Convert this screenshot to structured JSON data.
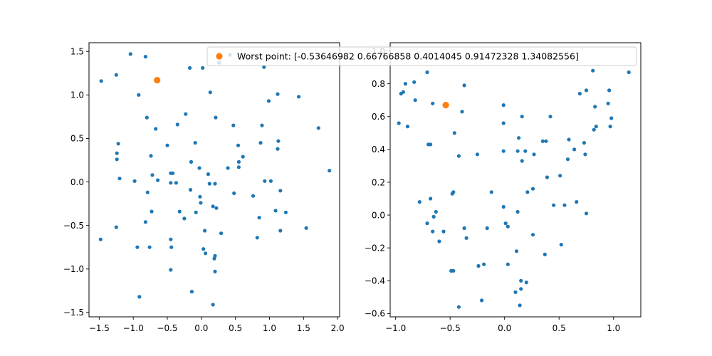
{
  "colors": {
    "points": "#1f77b4",
    "worst": "#ff7f0e",
    "axes": "#000000",
    "legend_border": "#cccccc"
  },
  "legend": {
    "label": "Worst point: [-0.53646982  0.66766858  0.4014045   0.91472328  1.34082556]",
    "placement": "top-center, over second plot"
  },
  "chart_data": [
    {
      "type": "scatter",
      "title": "",
      "xlabel": "",
      "ylabel": "",
      "xlim": [
        -1.65,
        2.03
      ],
      "ylim": [
        -1.55,
        1.6
      ],
      "xticks": [
        -1.5,
        -1.0,
        -0.5,
        0.0,
        0.5,
        1.0,
        1.5,
        2.0
      ],
      "xtick_labels": [
        "−1.5",
        "−1.0",
        "−0.5",
        "0.0",
        "0.5",
        "1.0",
        "1.5",
        "2.0"
      ],
      "yticks": [
        -1.5,
        -1.0,
        -0.5,
        0.0,
        0.5,
        1.0,
        1.5
      ],
      "ytick_labels": [
        "−1.5",
        "−1.0",
        "−0.5",
        "0.0",
        "0.5",
        "1.0",
        "1.5"
      ],
      "grid": false,
      "series": [
        {
          "role": "points",
          "points": [
            [
              -1.04,
              1.47
            ],
            [
              -0.82,
              1.44
            ],
            [
              -0.17,
              1.31
            ],
            [
              0.02,
              1.31
            ],
            [
              0.26,
              1.37
            ],
            [
              0.42,
              1.46
            ],
            [
              -1.47,
              1.16
            ],
            [
              -1.25,
              1.23
            ],
            [
              0.92,
              1.32
            ],
            [
              -0.92,
              1.0
            ],
            [
              0.13,
              1.03
            ],
            [
              1.12,
              1.01
            ],
            [
              1.43,
              0.98
            ],
            [
              0.99,
              0.93
            ],
            [
              -0.8,
              0.74
            ],
            [
              -0.67,
              0.61
            ],
            [
              -0.35,
              0.66
            ],
            [
              -0.23,
              0.78
            ],
            [
              0.21,
              0.74
            ],
            [
              0.47,
              0.65
            ],
            [
              0.89,
              0.65
            ],
            [
              1.72,
              0.62
            ],
            [
              -0.5,
              0.42
            ],
            [
              -0.09,
              0.45
            ],
            [
              -1.22,
              0.44
            ],
            [
              0.54,
              0.42
            ],
            [
              0.87,
              0.45
            ],
            [
              1.13,
              0.47
            ],
            [
              1.12,
              0.38
            ],
            [
              -1.24,
              0.33
            ],
            [
              -1.24,
              0.26
            ],
            [
              -0.74,
              0.3
            ],
            [
              0.61,
              0.29
            ],
            [
              0.55,
              0.23
            ],
            [
              -0.15,
              0.23
            ],
            [
              0.39,
              0.16
            ],
            [
              0.55,
              0.17
            ],
            [
              -0.03,
              0.16
            ],
            [
              0.1,
              0.09
            ],
            [
              -0.72,
              0.08
            ],
            [
              -0.45,
              0.1
            ],
            [
              -0.42,
              0.1
            ],
            [
              1.88,
              0.13
            ],
            [
              -1.2,
              0.04
            ],
            [
              -0.98,
              0.01
            ],
            [
              -0.64,
              0.02
            ],
            [
              -0.45,
              -0.01
            ],
            [
              -0.37,
              -0.01
            ],
            [
              0.12,
              -0.02
            ],
            [
              0.2,
              -0.02
            ],
            [
              0.93,
              0.01
            ],
            [
              1.02,
              0.01
            ],
            [
              -0.79,
              -0.12
            ],
            [
              -0.16,
              -0.09
            ],
            [
              -0.02,
              -0.17
            ],
            [
              0.48,
              -0.13
            ],
            [
              0.76,
              -0.16
            ],
            [
              1.16,
              -0.1
            ],
            [
              -0.01,
              -0.24
            ],
            [
              0.17,
              -0.28
            ],
            [
              -0.73,
              -0.34
            ],
            [
              -0.32,
              -0.34
            ],
            [
              -0.08,
              -0.35
            ],
            [
              0.22,
              -0.3
            ],
            [
              1.09,
              -0.33
            ],
            [
              1.24,
              -0.35
            ],
            [
              -0.25,
              -0.42
            ],
            [
              -0.82,
              -0.46
            ],
            [
              0.85,
              -0.41
            ],
            [
              -1.25,
              -0.52
            ],
            [
              0.05,
              -0.56
            ],
            [
              0.29,
              -0.59
            ],
            [
              1.16,
              -0.56
            ],
            [
              1.54,
              -0.53
            ],
            [
              -1.48,
              -0.66
            ],
            [
              -0.45,
              -0.66
            ],
            [
              0.82,
              -0.64
            ],
            [
              -0.94,
              -0.75
            ],
            [
              -0.76,
              -0.75
            ],
            [
              -0.44,
              -0.75
            ],
            [
              0.03,
              -0.77
            ],
            [
              0.06,
              -0.82
            ],
            [
              0.2,
              -0.85
            ],
            [
              0.19,
              -0.88
            ],
            [
              -0.45,
              -1.01
            ],
            [
              0.2,
              -1.03
            ],
            [
              -0.91,
              -1.32
            ],
            [
              -0.14,
              -1.26
            ],
            [
              0.17,
              -1.41
            ]
          ]
        },
        {
          "role": "worst",
          "points": [
            [
              -0.65,
              1.17
            ]
          ]
        }
      ]
    },
    {
      "type": "scatter",
      "title": "",
      "xlabel": "",
      "ylabel": "",
      "xlim": [
        -1.05,
        1.25
      ],
      "ylim": [
        -0.62,
        1.05
      ],
      "xticks": [
        -1.0,
        -0.5,
        0.0,
        0.5,
        1.0
      ],
      "xtick_labels": [
        "−1.0",
        "−0.5",
        "0.0",
        "0.5",
        "1.0"
      ],
      "yticks": [
        -0.6,
        -0.4,
        -0.2,
        0.0,
        0.2,
        0.4,
        0.6,
        0.8,
        1.0
      ],
      "ytick_labels": [
        "−0.6",
        "−0.4",
        "−0.2",
        "0.0",
        "0.2",
        "0.4",
        "0.6",
        "0.8",
        "1.0"
      ],
      "grid": false,
      "series": [
        {
          "role": "points",
          "points": [
            [
              -0.93,
              0.75
            ],
            [
              -0.91,
              0.8
            ],
            [
              -0.83,
              0.81
            ],
            [
              -0.71,
              0.87
            ],
            [
              -0.95,
              0.74
            ],
            [
              -0.97,
              0.56
            ],
            [
              -0.89,
              0.54
            ],
            [
              -0.82,
              0.7
            ],
            [
              -0.37,
              0.79
            ],
            [
              1.14,
              0.87
            ],
            [
              0.81,
              0.88
            ],
            [
              0.75,
              0.76
            ],
            [
              0.69,
              0.74
            ],
            [
              0.96,
              0.76
            ],
            [
              -0.66,
              0.68
            ],
            [
              -0.01,
              0.67
            ],
            [
              -0.39,
              0.63
            ],
            [
              0.16,
              0.6
            ],
            [
              0.42,
              0.6
            ],
            [
              0.83,
              0.66
            ],
            [
              0.95,
              0.68
            ],
            [
              0.98,
              0.59
            ],
            [
              0.84,
              0.54
            ],
            [
              0.82,
              0.52
            ],
            [
              0.97,
              0.54
            ],
            [
              -0.01,
              0.56
            ],
            [
              -0.46,
              0.5
            ],
            [
              -0.7,
              0.43
            ],
            [
              -0.68,
              0.43
            ],
            [
              0.13,
              0.47
            ],
            [
              0.35,
              0.45
            ],
            [
              0.38,
              0.45
            ],
            [
              0.59,
              0.46
            ],
            [
              0.73,
              0.44
            ],
            [
              0.64,
              0.4
            ],
            [
              -0.42,
              0.36
            ],
            [
              -0.25,
              0.37
            ],
            [
              0.12,
              0.39
            ],
            [
              0.19,
              0.39
            ],
            [
              0.27,
              0.37
            ],
            [
              0.16,
              0.33
            ],
            [
              0.58,
              0.34
            ],
            [
              0.74,
              0.37
            ],
            [
              -0.01,
              0.39
            ],
            [
              0.39,
              0.23
            ],
            [
              0.51,
              0.24
            ],
            [
              0.26,
              0.16
            ],
            [
              0.21,
              0.14
            ],
            [
              -0.12,
              0.14
            ],
            [
              -0.47,
              0.14
            ],
            [
              -0.48,
              0.13
            ],
            [
              -0.78,
              0.08
            ],
            [
              -0.68,
              0.1
            ],
            [
              0.45,
              0.06
            ],
            [
              0.55,
              0.06
            ],
            [
              0.66,
              0.08
            ],
            [
              0.75,
              0.01
            ],
            [
              -0.01,
              0.05
            ],
            [
              0.12,
              0.02
            ],
            [
              -0.63,
              0.02
            ],
            [
              -0.65,
              -0.01
            ],
            [
              -0.71,
              -0.05
            ],
            [
              -0.66,
              -0.1
            ],
            [
              -0.56,
              -0.1
            ],
            [
              -0.37,
              -0.08
            ],
            [
              -0.16,
              -0.08
            ],
            [
              0.01,
              -0.05
            ],
            [
              0.03,
              -0.07
            ],
            [
              -0.35,
              -0.14
            ],
            [
              -0.6,
              -0.16
            ],
            [
              0.26,
              -0.12
            ],
            [
              0.52,
              -0.18
            ],
            [
              0.11,
              -0.22
            ],
            [
              0.37,
              -0.24
            ],
            [
              -0.47,
              -0.34
            ],
            [
              -0.49,
              -0.34
            ],
            [
              -0.24,
              -0.31
            ],
            [
              -0.19,
              -0.3
            ],
            [
              0.03,
              -0.3
            ],
            [
              0.15,
              -0.4
            ],
            [
              0.2,
              -0.41
            ],
            [
              0.15,
              -0.45
            ],
            [
              0.1,
              -0.47
            ],
            [
              -0.21,
              -0.52
            ],
            [
              -0.42,
              -0.56
            ],
            [
              0.14,
              -0.55
            ]
          ]
        },
        {
          "role": "worst",
          "points": [
            [
              -0.54,
              0.67
            ]
          ]
        }
      ]
    }
  ]
}
